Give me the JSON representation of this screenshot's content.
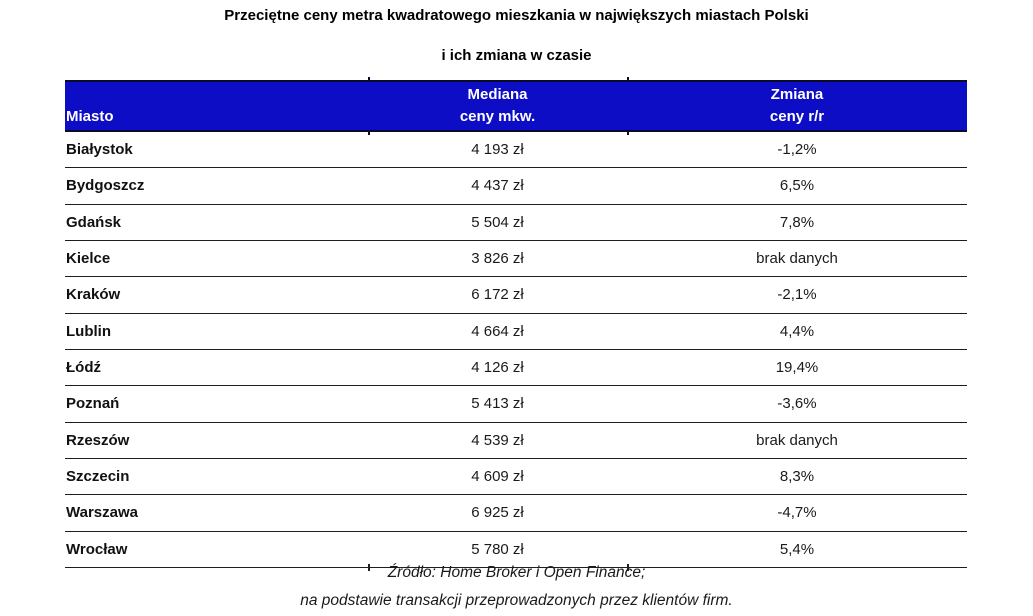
{
  "title": "Przeciętne ceny metra kwadratowego mieszkania w największych miastach Polski",
  "subtitle": "i ich zmiana w czasie",
  "table": {
    "headers": {
      "city": "Miasto",
      "median_line1": "Mediana",
      "median_line2": "ceny mkw.",
      "change_line1": "Zmiana",
      "change_line2": "ceny r/r"
    },
    "rows": [
      {
        "city": "Białystok",
        "median": "4 193 zł",
        "change": "-1,2%"
      },
      {
        "city": "Bydgoszcz",
        "median": "4 437 zł",
        "change": "6,5%"
      },
      {
        "city": "Gdańsk",
        "median": "5 504 zł",
        "change": "7,8%"
      },
      {
        "city": "Kielce",
        "median": "3 826 zł",
        "change": "brak danych"
      },
      {
        "city": "Kraków",
        "median": "6 172 zł",
        "change": "-2,1%"
      },
      {
        "city": "Lublin",
        "median": "4 664 zł",
        "change": "4,4%"
      },
      {
        "city": "Łódź",
        "median": "4 126 zł",
        "change": "19,4%"
      },
      {
        "city": "Poznań",
        "median": "5 413 zł",
        "change": "-3,6%"
      },
      {
        "city": "Rzeszów",
        "median": "4 539 zł",
        "change": "brak danych"
      },
      {
        "city": "Szczecin",
        "median": "4 609 zł",
        "change": "8,3%"
      },
      {
        "city": "Warszawa",
        "median": "6 925 zł",
        "change": "-4,7%"
      },
      {
        "city": "Wrocław",
        "median": "5 780 zł",
        "change": "5,4%"
      }
    ]
  },
  "footer": {
    "line1": "Źródło: Home Broker i Open Finance;",
    "line2": "na podstawie transakcji przeprowadzonych przez klientów firm."
  },
  "colors": {
    "header_bg": "#0d0dc6",
    "header_text": "#ffffff",
    "header_border": "#0a0a2e",
    "row_line": "#1e1e1e",
    "text": "#1a1a1a"
  },
  "chart_data": {
    "type": "table",
    "title": "Przeciętne ceny metra kwadratowego mieszkania w największych miastach Polski i ich zmiana w czasie",
    "columns": [
      "Miasto",
      "Mediana ceny mkw.",
      "Zmiana ceny r/r"
    ],
    "rows": [
      [
        "Białystok",
        "4 193 zł",
        "-1,2%"
      ],
      [
        "Bydgoszcz",
        "4 437 zł",
        "6,5%"
      ],
      [
        "Gdańsk",
        "5 504 zł",
        "7,8%"
      ],
      [
        "Kielce",
        "3 826 zł",
        "brak danych"
      ],
      [
        "Kraków",
        "6 172 zł",
        "-2,1%"
      ],
      [
        "Lublin",
        "4 664 zł",
        "4,4%"
      ],
      [
        "Łódź",
        "4 126 zł",
        "19,4%"
      ],
      [
        "Poznań",
        "5 413 zł",
        "-3,6%"
      ],
      [
        "Rzeszów",
        "4 539 zł",
        "brak danych"
      ],
      [
        "Szczecin",
        "4 609 zł",
        "8,3%"
      ],
      [
        "Warszawa",
        "6 925 zł",
        "-4,7%"
      ],
      [
        "Wrocław",
        "5 780 zł",
        "5,4%"
      ]
    ],
    "source": "Źródło: Home Broker i Open Finance; na podstawie transakcji przeprowadzonych przez klientów firm."
  }
}
